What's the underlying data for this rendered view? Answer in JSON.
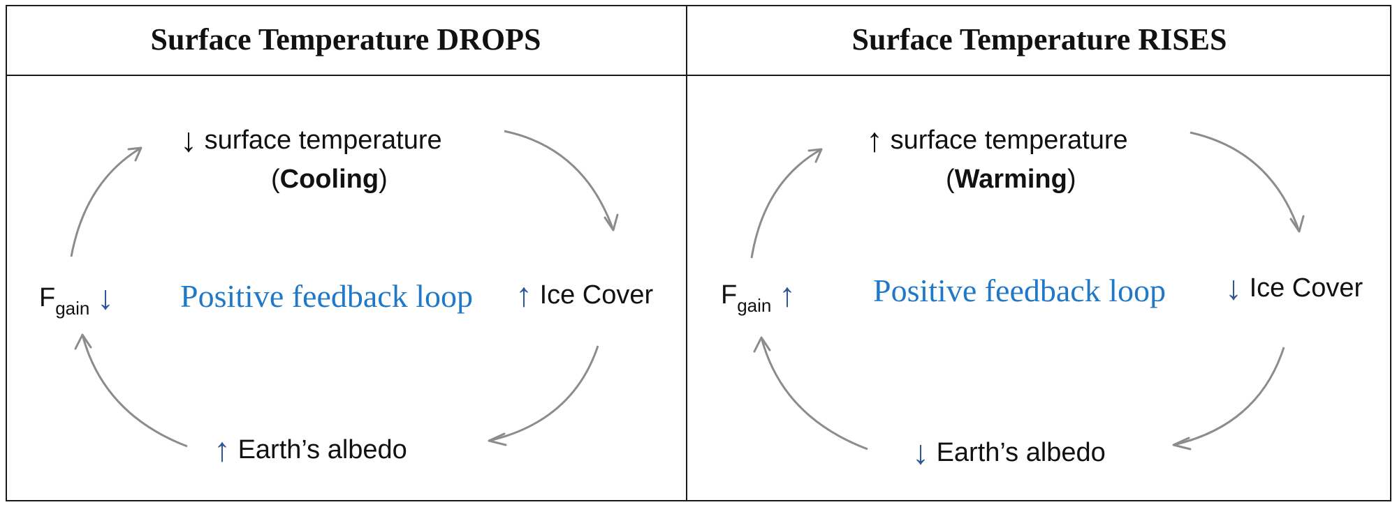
{
  "panels": [
    {
      "title": "Surface Temperature DROPS",
      "top": {
        "arrow": "↓",
        "text": "surface temperature",
        "paren_open": "(",
        "bold": "Cooling",
        "paren_close": ")"
      },
      "right": {
        "arrow": "↑",
        "text": "Ice Cover"
      },
      "bottom": {
        "arrow": "↑",
        "text": "Earth’s albedo"
      },
      "left": {
        "base": "F",
        "sub": "gain",
        "arrow": "↓"
      },
      "center": "Positive feedback loop"
    },
    {
      "title": "Surface Temperature RISES",
      "top": {
        "arrow": "↑",
        "text": "surface temperature",
        "paren_open": "(",
        "bold": "Warming",
        "paren_close": ")"
      },
      "right": {
        "arrow": "↓",
        "text": "Ice Cover"
      },
      "bottom": {
        "arrow": "↓",
        "text": "Earth’s albedo"
      },
      "left": {
        "base": "F",
        "sub": "gain",
        "arrow": "↑"
      },
      "center": "Positive feedback loop"
    }
  ],
  "colors": {
    "accent_blue": "#1f78c8",
    "arrow_blue": "#2f5597",
    "cycle_arrow_gray": "#8c8c8c"
  }
}
